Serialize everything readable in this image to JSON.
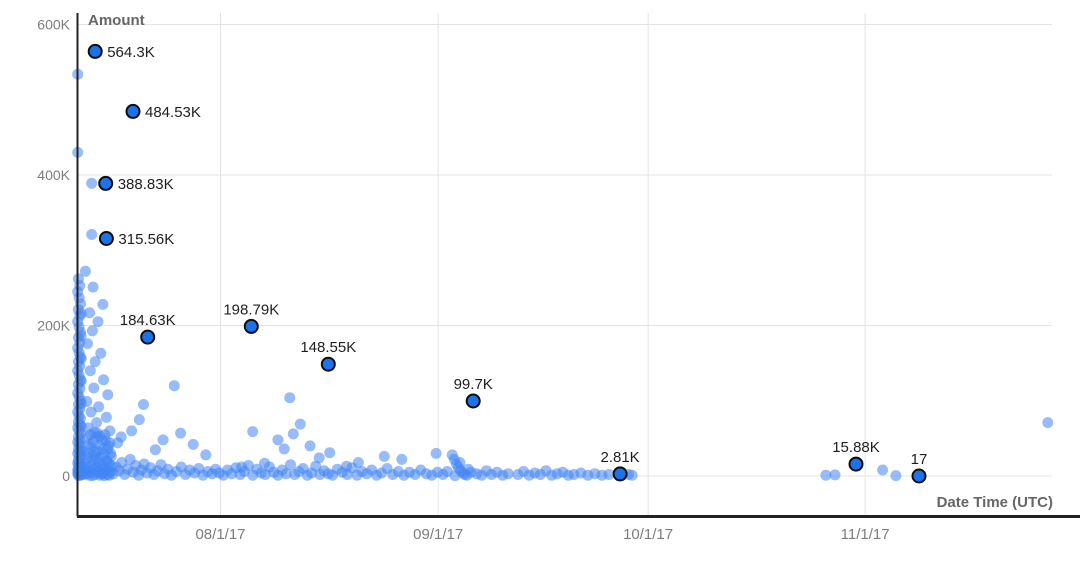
{
  "chart_data": {
    "type": "scatter",
    "title": "",
    "xlabel": "Date Time (UTC)",
    "ylabel": "Amount",
    "legend": "none",
    "grid": true,
    "x_axis": {
      "kind": "datetime",
      "range_days": [
        0,
        139.3
      ],
      "ticks": [
        {
          "label": "08/1/17",
          "day": 20.5
        },
        {
          "label": "09/1/17",
          "day": 51.6
        },
        {
          "label": "10/1/17",
          "day": 81.6
        },
        {
          "label": "11/1/17",
          "day": 112.6
        }
      ]
    },
    "y_axis": {
      "kind": "linear",
      "unit": "K",
      "range_k": [
        0,
        615.3
      ],
      "ticks": [
        {
          "label": "0",
          "k": 0
        },
        {
          "label": "200K",
          "k": 200
        },
        {
          "label": "400K",
          "k": 400
        },
        {
          "label": "600K",
          "k": 600
        }
      ]
    },
    "labeled_points": [
      {
        "label": "564.3K",
        "day": 2.6,
        "k": 564.3,
        "pos": "right"
      },
      {
        "label": "484.53K",
        "day": 8.0,
        "k": 484.53,
        "pos": "right"
      },
      {
        "label": "388.83K",
        "day": 4.1,
        "k": 388.83,
        "pos": "right"
      },
      {
        "label": "315.56K",
        "day": 4.2,
        "k": 315.56,
        "pos": "right"
      },
      {
        "label": "184.63K",
        "day": 10.1,
        "k": 184.63,
        "pos": "above"
      },
      {
        "label": "198.79K",
        "day": 24.9,
        "k": 198.79,
        "pos": "above"
      },
      {
        "label": "148.55K",
        "day": 35.9,
        "k": 148.55,
        "pos": "above"
      },
      {
        "label": "99.7K",
        "day": 56.6,
        "k": 99.7,
        "pos": "above"
      },
      {
        "label": "2.81K",
        "day": 77.6,
        "k": 2.81,
        "pos": "above"
      },
      {
        "label": "15.88K",
        "day": 111.3,
        "k": 15.88,
        "pos": "above"
      },
      {
        "label": "17",
        "day": 120.3,
        "k": 0.017,
        "pos": "above"
      }
    ],
    "points": [
      [
        0.1,
        534
      ],
      [
        0.1,
        430
      ],
      [
        0.2,
        262
      ],
      [
        0.4,
        253
      ],
      [
        0.1,
        245
      ],
      [
        0.3,
        237
      ],
      [
        0.5,
        229
      ],
      [
        0.2,
        221
      ],
      [
        0.4,
        213
      ],
      [
        0.1,
        205
      ],
      [
        0.3,
        198
      ],
      [
        0.5,
        191
      ],
      [
        0.2,
        184
      ],
      [
        0.4,
        177
      ],
      [
        0.1,
        170
      ],
      [
        0.3,
        164
      ],
      [
        0.5,
        158
      ],
      [
        0.2,
        152
      ],
      [
        0.4,
        146
      ],
      [
        0.1,
        140
      ],
      [
        0.3,
        134
      ],
      [
        0.5,
        128
      ],
      [
        0.2,
        122
      ],
      [
        0.4,
        116
      ],
      [
        0.1,
        110
      ],
      [
        0.3,
        105
      ],
      [
        0.5,
        100
      ],
      [
        0.2,
        95
      ],
      [
        0.4,
        90
      ],
      [
        0.1,
        85
      ],
      [
        0.3,
        80
      ],
      [
        0.5,
        76
      ],
      [
        0.2,
        72
      ],
      [
        0.4,
        68
      ],
      [
        0.1,
        64
      ],
      [
        0.3,
        60
      ],
      [
        0.5,
        56
      ],
      [
        0.2,
        52
      ],
      [
        0.4,
        48
      ],
      [
        0.1,
        45
      ],
      [
        0.3,
        42
      ],
      [
        0.5,
        39
      ],
      [
        0.2,
        36
      ],
      [
        0.4,
        33
      ],
      [
        0.1,
        30
      ],
      [
        0.3,
        27
      ],
      [
        0.5,
        24
      ],
      [
        0.2,
        21
      ],
      [
        0.4,
        19
      ],
      [
        0.1,
        17
      ],
      [
        0.3,
        15
      ],
      [
        0.5,
        13
      ],
      [
        0.2,
        11
      ],
      [
        0.4,
        9
      ],
      [
        0.1,
        8
      ],
      [
        0.3,
        7
      ],
      [
        0.5,
        6
      ],
      [
        0.2,
        5
      ],
      [
        0.4,
        4
      ],
      [
        0.1,
        3
      ],
      [
        0.3,
        2
      ],
      [
        0.5,
        1
      ],
      [
        0.2,
        0.5
      ],
      [
        0.6,
        2
      ],
      [
        0.6,
        14
      ],
      [
        0.6,
        34
      ],
      [
        0.6,
        66
      ],
      [
        0.6,
        96
      ],
      [
        0.6,
        126
      ],
      [
        0.6,
        156
      ],
      [
        0.6,
        186
      ],
      [
        0.6,
        216
      ],
      [
        2.1,
        389
      ],
      [
        2.1,
        321
      ],
      [
        1.2,
        272
      ],
      [
        2.3,
        251
      ],
      [
        3.7,
        228
      ],
      [
        1.8,
        217
      ],
      [
        3.0,
        205
      ],
      [
        2.2,
        193
      ],
      [
        1.5,
        176
      ],
      [
        3.4,
        163
      ],
      [
        2.6,
        152
      ],
      [
        1.9,
        140
      ],
      [
        3.8,
        128
      ],
      [
        2.4,
        117
      ],
      [
        4.4,
        108
      ],
      [
        1.4,
        99
      ],
      [
        3.1,
        92
      ],
      [
        2.0,
        85
      ],
      [
        4.2,
        78
      ],
      [
        2.8,
        71
      ],
      [
        1.6,
        64
      ],
      [
        4.7,
        60
      ],
      [
        1.0,
        2
      ],
      [
        1.1,
        6
      ],
      [
        1.2,
        11
      ],
      [
        1.3,
        17
      ],
      [
        1.4,
        3
      ],
      [
        1.5,
        24
      ],
      [
        1.6,
        8
      ],
      [
        1.7,
        31
      ],
      [
        1.8,
        1
      ],
      [
        1.9,
        14
      ],
      [
        2.0,
        38
      ],
      [
        2.1,
        5
      ],
      [
        2.2,
        20
      ],
      [
        2.3,
        45
      ],
      [
        2.4,
        9
      ],
      [
        2.5,
        27
      ],
      [
        2.6,
        2
      ],
      [
        2.7,
        52
      ],
      [
        2.8,
        12
      ],
      [
        2.9,
        33
      ],
      [
        3.0,
        6
      ],
      [
        3.1,
        18
      ],
      [
        3.2,
        41
      ],
      [
        3.3,
        1
      ],
      [
        3.4,
        25
      ],
      [
        3.5,
        9
      ],
      [
        3.6,
        48
      ],
      [
        3.7,
        15
      ],
      [
        3.8,
        4
      ],
      [
        3.9,
        29
      ],
      [
        4.0,
        55
      ],
      [
        4.1,
        11
      ],
      [
        4.2,
        21
      ],
      [
        4.3,
        2
      ],
      [
        4.4,
        36
      ],
      [
        4.5,
        7
      ],
      [
        4.6,
        16
      ],
      [
        4.7,
        44
      ],
      [
        4.8,
        5
      ],
      [
        4.9,
        26
      ],
      [
        5.0,
        13
      ],
      [
        1.3,
        50
      ],
      [
        2.5,
        58
      ],
      [
        3.3,
        53
      ],
      [
        4.1,
        47
      ],
      [
        1.7,
        42
      ],
      [
        2.9,
        57
      ],
      [
        3.6,
        35
      ],
      [
        4.8,
        30
      ],
      [
        2.2,
        0.5
      ],
      [
        3.9,
        0.5
      ],
      [
        1.1,
        28
      ],
      [
        4.5,
        40
      ],
      [
        2.7,
        23
      ],
      [
        3.2,
        10
      ],
      [
        4.3,
        19
      ],
      [
        1.9,
        55
      ],
      [
        3.5,
        3
      ],
      [
        2.4,
        32
      ],
      [
        4.6,
        1
      ],
      [
        13.9,
        120
      ],
      [
        9.5,
        95
      ],
      [
        8.9,
        75
      ],
      [
        7.8,
        60
      ],
      [
        14.8,
        57
      ],
      [
        12.3,
        48
      ],
      [
        16.6,
        42
      ],
      [
        11.2,
        35
      ],
      [
        18.4,
        28
      ],
      [
        6.3,
        52
      ],
      [
        5.8,
        44
      ],
      [
        5.2,
        3
      ],
      [
        5.6,
        12
      ],
      [
        6.0,
        7
      ],
      [
        6.4,
        18
      ],
      [
        6.8,
        2
      ],
      [
        7.2,
        9
      ],
      [
        7.6,
        22
      ],
      [
        8.0,
        5
      ],
      [
        8.4,
        14
      ],
      [
        8.8,
        1
      ],
      [
        9.2,
        8
      ],
      [
        9.6,
        16
      ],
      [
        10.0,
        4
      ],
      [
        10.5,
        11
      ],
      [
        11.0,
        2
      ],
      [
        11.5,
        7
      ],
      [
        12.0,
        15
      ],
      [
        12.5,
        3
      ],
      [
        13.0,
        9
      ],
      [
        13.5,
        1
      ],
      [
        14.2,
        6
      ],
      [
        14.9,
        12
      ],
      [
        15.5,
        2
      ],
      [
        16.1,
        8
      ],
      [
        16.8,
        4
      ],
      [
        17.4,
        10
      ],
      [
        18.0,
        1
      ],
      [
        18.7,
        6
      ],
      [
        19.3,
        3
      ],
      [
        19.8,
        9
      ],
      [
        30.4,
        104
      ],
      [
        31.9,
        69
      ],
      [
        25.1,
        59
      ],
      [
        28.7,
        48
      ],
      [
        33.3,
        40
      ],
      [
        30.9,
        56
      ],
      [
        29.6,
        36
      ],
      [
        36.1,
        31
      ],
      [
        43.9,
        26
      ],
      [
        40.2,
        18
      ],
      [
        46.4,
        22
      ],
      [
        38.5,
        13
      ],
      [
        51.3,
        30
      ],
      [
        34.6,
        24
      ],
      [
        26.8,
        17
      ],
      [
        23.5,
        12
      ],
      [
        20.3,
        4
      ],
      [
        20.9,
        1
      ],
      [
        21.5,
        8
      ],
      [
        22.1,
        3
      ],
      [
        22.7,
        11
      ],
      [
        23.3,
        2
      ],
      [
        23.9,
        6
      ],
      [
        24.5,
        14
      ],
      [
        25.1,
        1
      ],
      [
        25.7,
        9
      ],
      [
        26.3,
        4
      ],
      [
        26.9,
        2
      ],
      [
        27.5,
        12
      ],
      [
        28.1,
        5
      ],
      [
        28.7,
        1
      ],
      [
        29.3,
        8
      ],
      [
        29.9,
        3
      ],
      [
        30.5,
        15
      ],
      [
        31.1,
        2
      ],
      [
        31.7,
        6
      ],
      [
        32.3,
        10
      ],
      [
        32.9,
        1
      ],
      [
        33.5,
        4
      ],
      [
        34.1,
        13
      ],
      [
        34.7,
        2
      ],
      [
        35.3,
        7
      ],
      [
        35.9,
        3
      ],
      [
        36.5,
        1
      ],
      [
        37.2,
        9
      ],
      [
        37.9,
        5
      ],
      [
        38.6,
        2
      ],
      [
        39.3,
        11
      ],
      [
        40.0,
        1
      ],
      [
        40.7,
        6
      ],
      [
        41.4,
        3
      ],
      [
        42.1,
        8
      ],
      [
        42.8,
        1
      ],
      [
        43.5,
        4
      ],
      [
        44.3,
        10
      ],
      [
        45.1,
        2
      ],
      [
        45.9,
        6
      ],
      [
        46.7,
        1
      ],
      [
        47.5,
        5
      ],
      [
        48.3,
        2
      ],
      [
        49.1,
        8
      ],
      [
        49.9,
        3
      ],
      [
        50.7,
        1
      ],
      [
        51.5,
        5
      ],
      [
        53.6,
        28
      ],
      [
        53.9,
        22
      ],
      [
        54.2,
        16
      ],
      [
        54.5,
        11
      ],
      [
        54.8,
        7
      ],
      [
        55.1,
        4
      ],
      [
        55.4,
        2
      ],
      [
        55.7,
        1
      ],
      [
        54.0,
        0.5
      ],
      [
        54.7,
        18
      ],
      [
        55.9,
        9
      ],
      [
        56.3,
        5
      ],
      [
        52.3,
        2
      ],
      [
        52.9,
        6
      ],
      [
        57.1,
        3
      ],
      [
        57.8,
        1
      ],
      [
        58.5,
        7
      ],
      [
        59.2,
        2
      ],
      [
        60.0,
        5
      ],
      [
        60.8,
        1
      ],
      [
        61.6,
        3
      ],
      [
        63.0,
        2
      ],
      [
        63.8,
        6
      ],
      [
        64.6,
        1
      ],
      [
        65.4,
        4
      ],
      [
        66.2,
        2
      ],
      [
        67.0,
        7
      ],
      [
        67.8,
        1
      ],
      [
        68.6,
        3
      ],
      [
        69.4,
        5
      ],
      [
        70.2,
        1
      ],
      [
        71.0,
        2
      ],
      [
        72.0,
        4
      ],
      [
        73.0,
        1
      ],
      [
        74.0,
        3
      ],
      [
        75.0,
        1
      ],
      [
        76.0,
        2
      ],
      [
        78.8,
        2
      ],
      [
        79.3,
        1
      ],
      [
        107.0,
        1
      ],
      [
        108.3,
        1.5
      ],
      [
        115.1,
        8
      ],
      [
        117.0,
        0.5
      ],
      [
        138.7,
        71
      ]
    ],
    "colors": {
      "point": "#4285f4",
      "point_opacity": "0.55",
      "highlight_fill": "#1a73e8",
      "highlight_stroke": "#0d0d0d",
      "grid": "#e4e4e4",
      "axis_line": "#212121",
      "tick_text": "#7d7d7d",
      "axis_title_text": "#666666",
      "label_text": "#1f1f1f",
      "background": "#ffffff"
    }
  }
}
